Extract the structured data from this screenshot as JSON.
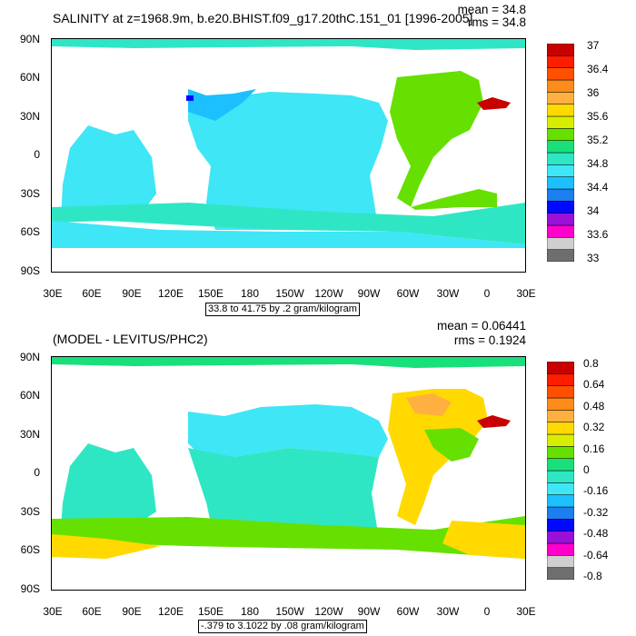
{
  "panel1": {
    "title": "SALINITY at z=1968.9m, b.e20.BHIST.f09_g17.20thC.151_01 [1996-2005]",
    "mean_label": "mean = 34.8",
    "rms_label": "rms = 34.8",
    "note": "33.8 to 41.75 by .2 gram/kilogram",
    "lat_labels": [
      "90N",
      "60N",
      "30N",
      "0",
      "30S",
      "60S",
      "90S"
    ],
    "lon_labels": [
      "30E",
      "60E",
      "90E",
      "120E",
      "150E",
      "180",
      "150W",
      "120W",
      "90W",
      "60W",
      "30W",
      "0",
      "30E"
    ],
    "colorbar": {
      "colors": [
        "#6e6e6e",
        "#cfcfcf",
        "#ff00cc",
        "#9a10d6",
        "#0008ff",
        "#1d7ef0",
        "#1cc0ff",
        "#3ee6f6",
        "#2fe6c4",
        "#18e07a",
        "#66e000",
        "#d8ee00",
        "#ffd900",
        "#ffb040",
        "#ff8b1a",
        "#ff5000",
        "#ff1d00",
        "#c80000"
      ],
      "labels": [
        "33",
        "33.6",
        "34",
        "34.4",
        "34.8",
        "35.2",
        "35.6",
        "36",
        "36.4",
        "37"
      ]
    }
  },
  "panel2": {
    "title": "(MODEL - LEVITUS/PHC2)",
    "mean_label": "mean = 0.06441",
    "rms_label": "rms = 0.1924",
    "note": "-.379 to 3.1022 by .08 gram/kilogram",
    "lat_labels": [
      "90N",
      "60N",
      "30N",
      "0",
      "30S",
      "60S",
      "90S"
    ],
    "lon_labels": [
      "30E",
      "60E",
      "90E",
      "120E",
      "150E",
      "180",
      "150W",
      "120W",
      "90W",
      "60W",
      "30W",
      "0",
      "30E"
    ],
    "colorbar": {
      "colors": [
        "#6e6e6e",
        "#cfcfcf",
        "#ff00cc",
        "#9a10d6",
        "#0008ff",
        "#1d7ef0",
        "#1cc0ff",
        "#3ee6f6",
        "#2fe6c4",
        "#18e07a",
        "#66e000",
        "#d8ee00",
        "#ffd900",
        "#ffb040",
        "#ff8b1a",
        "#ff5000",
        "#ff1d00",
        "#c80000"
      ],
      "labels": [
        "-0.8",
        "-0.64",
        "-0.48",
        "-0.32",
        "-0.16",
        "0",
        "0.16",
        "0.32",
        "0.48",
        "0.64",
        "0.8"
      ]
    }
  }
}
